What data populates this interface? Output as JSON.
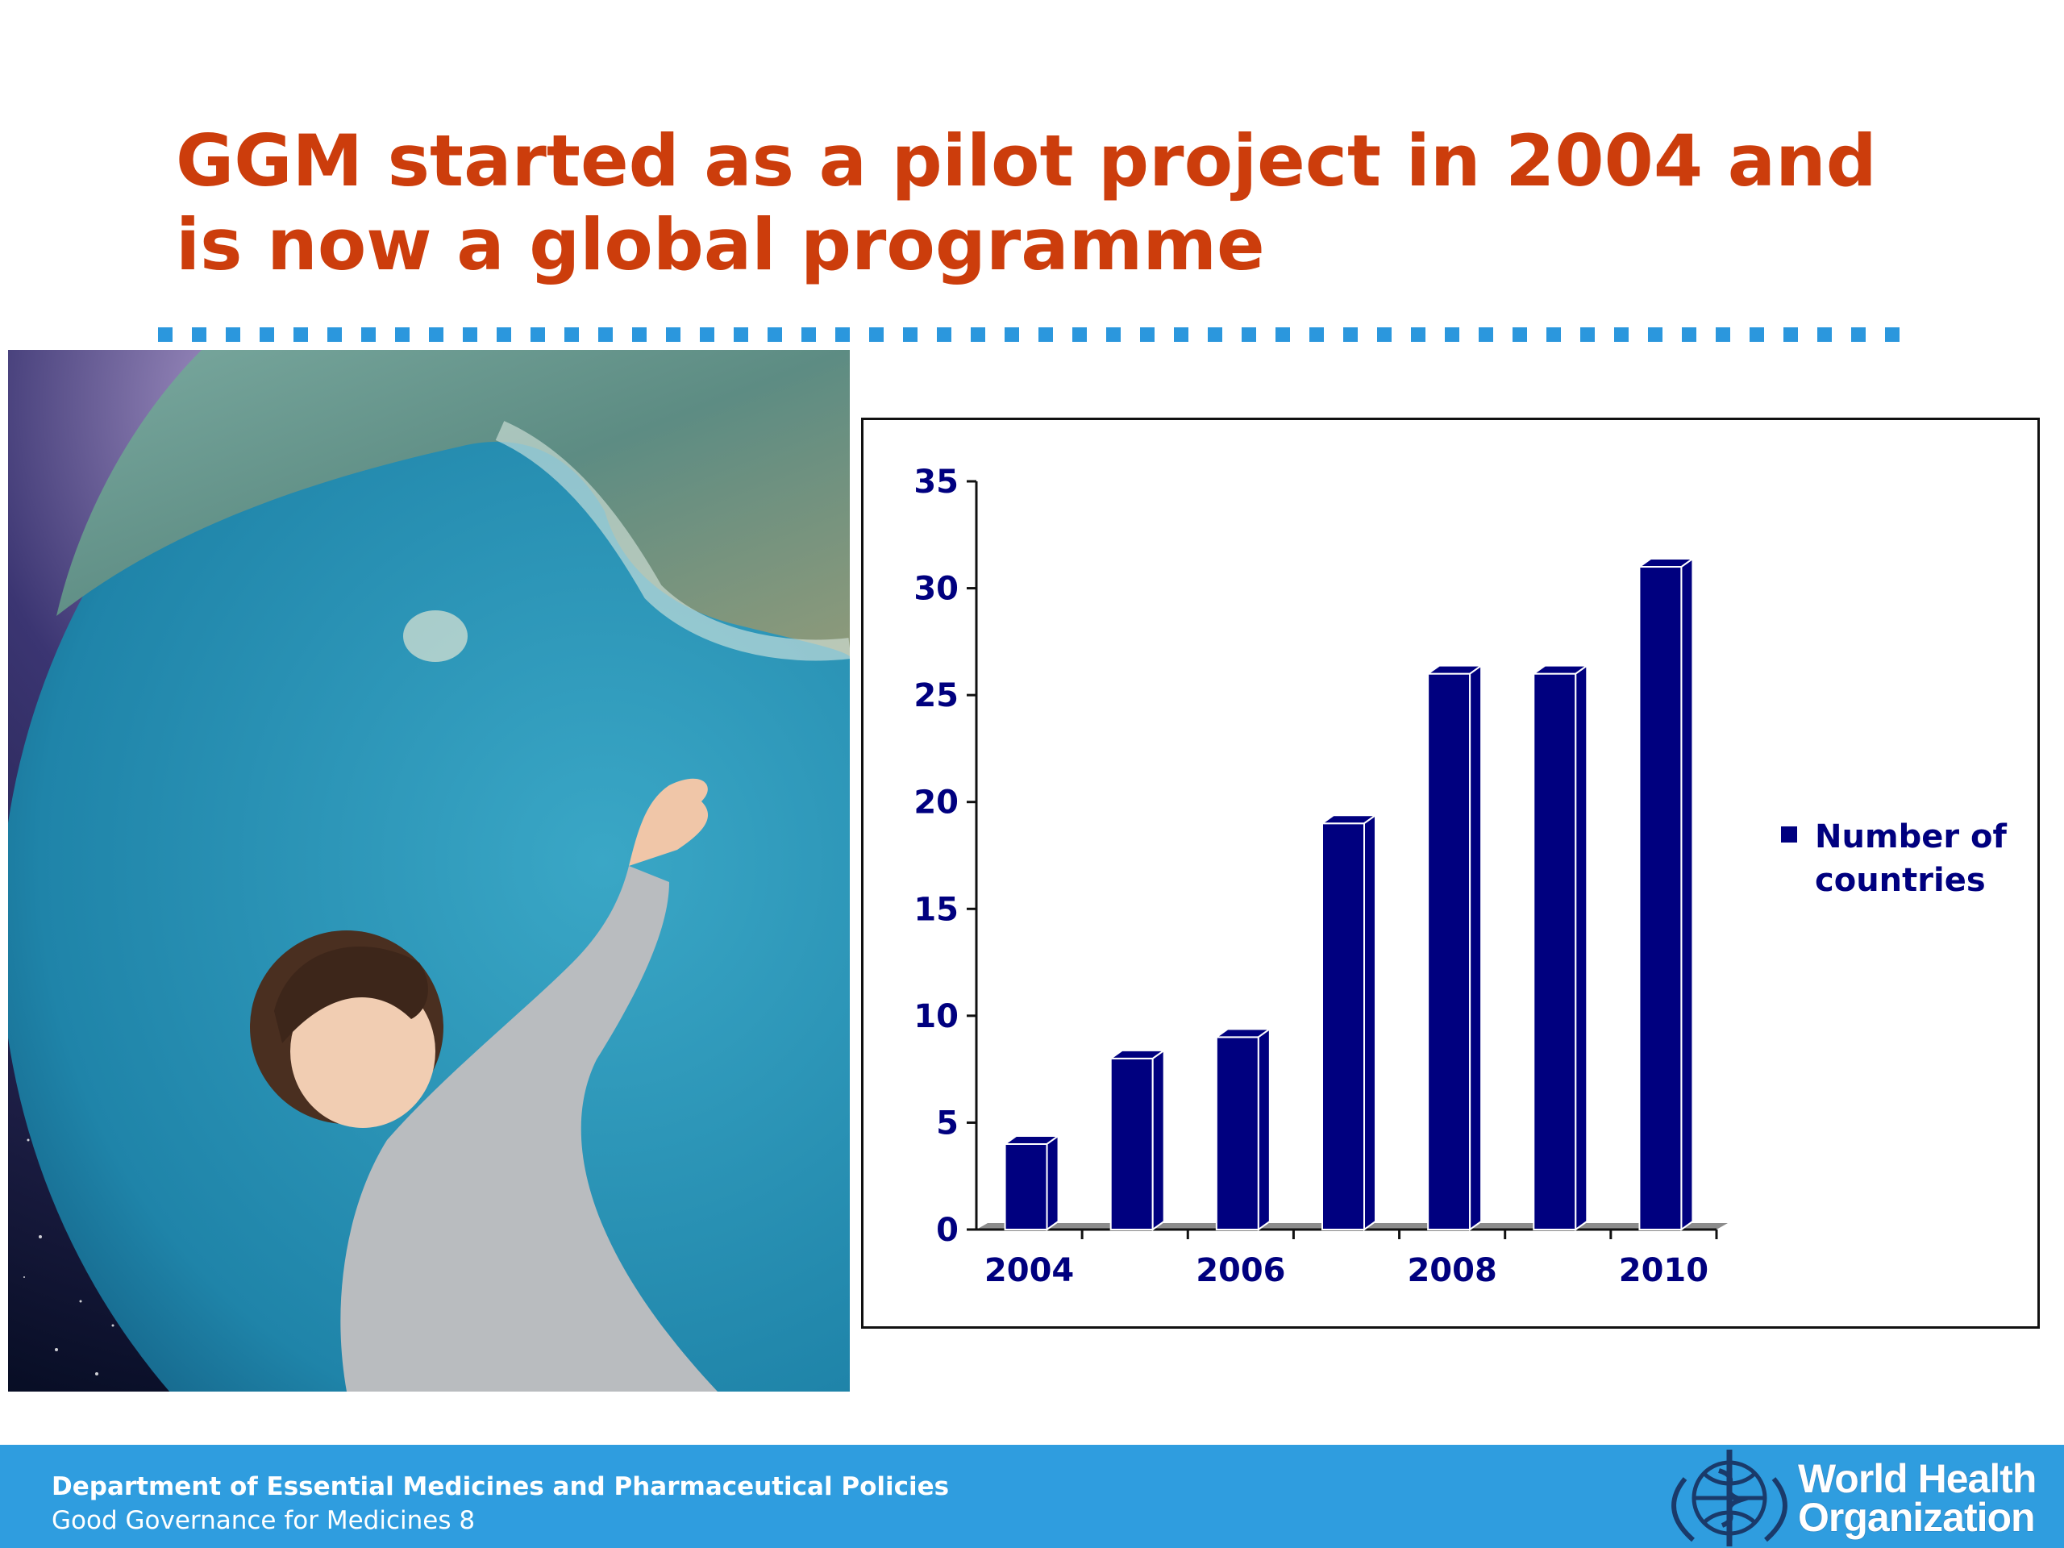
{
  "slide": {
    "title_lines": [
      "GGM started as a pilot project in 2004 and",
      "is now a global programme"
    ]
  },
  "footer": {
    "department": "Department of Essential Medicines and Pharmaceutical Policies",
    "subtitle": "Good Governance for Medicines 8",
    "logo_lines": [
      "World Health",
      "Organization"
    ]
  },
  "colors": {
    "title": "#cc3d0c",
    "accent_blue": "#2f9ddf",
    "bar": "#00007f",
    "label": "#00007f"
  },
  "chart_data": {
    "type": "bar",
    "categories": [
      "2004",
      "2005",
      "2006",
      "2007",
      "2008",
      "2009",
      "2010"
    ],
    "tick_labels_x": [
      "2004",
      "2006",
      "2008",
      "2010"
    ],
    "series": [
      {
        "name": "Number of countries",
        "values": [
          4,
          8,
          9,
          19,
          26,
          26,
          31
        ]
      }
    ],
    "legend_lines": [
      "Number of",
      "countries"
    ],
    "ylim": [
      0,
      35
    ],
    "yticks": [
      "0",
      "5",
      "10",
      "15",
      "20",
      "25",
      "30",
      "35"
    ],
    "legend_position": "right",
    "style": "3d-column",
    "grid": false
  }
}
